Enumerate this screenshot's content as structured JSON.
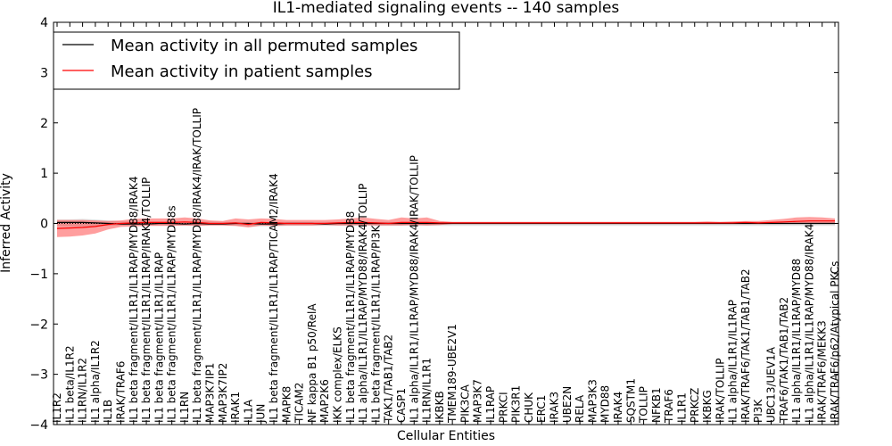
{
  "chart_data": {
    "type": "line",
    "title": "IL1-mediated signaling events -- 140 samples",
    "xlabel": "Cellular Entities",
    "ylabel": "Inferred Activity",
    "ylim": [
      -4,
      4
    ],
    "yticks": [
      -4,
      -3,
      -2,
      -1,
      0,
      1,
      2,
      3,
      4
    ],
    "ytick_labels": [
      "−4",
      "−3",
      "−2",
      "−1",
      "0",
      "1",
      "2",
      "3",
      "4"
    ],
    "legend_position": "top-left",
    "categories": [
      "IL1R2",
      "IL1 beta/IL1R2",
      "IL1RN/IL1R2",
      "IL1 alpha/IL1R2",
      "IL1B",
      "IRAK/TRAF6",
      "IL1 beta fragment/IL1R1/IL1RAP/MYD88/IRAK4",
      "IL1 beta fragment/IL1R1/IL1RAP/IRAK4/TOLLIP",
      "IL1 beta fragment/IL1R1/IL1RAP",
      "IL1 beta fragment/IL1R1/IL1RAP/MYD88s",
      "IL1RN",
      "IL1 beta fragment/IL1R1/IL1RAP/MYD88/IRAK4/IRAK/TOLLIP",
      "MAP3K7IP1",
      "MAP3K7IP2",
      "IRAK1",
      "IL1A",
      "JUN",
      "IL1 beta fragment/IL1R1/IL1RAP/TICAM2/IRAK4",
      "MAPK8",
      "TICAM2",
      "NF kappa B1 p50/RelA",
      "MAP2K6",
      "IKK complex/ELKS",
      "IL1 beta fragment/IL1R1/IL1RAP/MYD88",
      "IL1 alpha/IL1R1/IL1RAP/MYD88/IRAK4/TOLLIP",
      "IL1 beta fragment/IL1R1/IL1RAP/PI3K",
      "TAK1/TAB1/TAB2",
      "CASP1",
      "IL1 alpha/IL1R1/IL1RAP/MYD88/IRAK4/IRAK/TOLLIP",
      "IL1RN/IL1R1",
      "IKBKB",
      "TMEM189-UBE2V1",
      "PIK3CA",
      "MAP3K7",
      "IL1RAP",
      "PRKCI",
      "PIK3R1",
      "CHUK",
      "ERC1",
      "IRAK3",
      "UBE2N",
      "RELA",
      "MAP3K3",
      "MYD88",
      "IRAK4",
      "SQSTM1",
      "TOLLIP",
      "NFKB1",
      "TRAF6",
      "IL1R1",
      "PRKCZ",
      "IKBKG",
      "IRAK/TOLLIP",
      "IL1 alpha/IL1R1/IL1RAP",
      "IRAK/TRAF6/TAK1/TAB1/TAB2",
      "PI3K",
      "UBC13/UEV1A",
      "TRAF6/TAK1/TAB1/TAB2",
      "IL1 alpha/IL1R1/IL1RAP/MYD88",
      "IL1 alpha/IL1R1/IL1RAP/MYD88/IRAK4",
      "IRAK/TRAF6/MEKK3",
      "IRAK/TRAF6/p62/Atypical PKCs"
    ],
    "series": [
      {
        "name": "Mean activity in all permuted samples",
        "color": "#000000",
        "values": [
          0.02,
          0.02,
          0.02,
          0.01,
          0.0,
          -0.01,
          -0.01,
          -0.01,
          0.0,
          0.0,
          -0.01,
          0.0,
          -0.01,
          -0.01,
          0.0,
          0.0,
          -0.01,
          -0.01,
          0.0,
          0.0,
          0.0,
          -0.01,
          0.0,
          0.0,
          0.0,
          0.0,
          0.0,
          0.0,
          0.0,
          0.0,
          0.0,
          0.0,
          0.0,
          0.0,
          0.0,
          0.0,
          0.0,
          0.0,
          0.0,
          0.0,
          0.0,
          0.0,
          0.0,
          0.0,
          0.0,
          0.0,
          0.0,
          0.0,
          0.0,
          0.0,
          0.0,
          0.0,
          0.0,
          0.0,
          0.0,
          0.0,
          0.0,
          0.0,
          0.0,
          0.0,
          0.0,
          0.0
        ],
        "band_low": [
          -0.05,
          -0.06,
          -0.06,
          -0.05,
          -0.05,
          -0.04,
          -0.04,
          -0.04,
          -0.04,
          -0.04,
          -0.05,
          -0.05,
          -0.04,
          -0.04,
          -0.05,
          -0.06,
          -0.06,
          -0.06,
          -0.05,
          -0.05,
          -0.05,
          -0.05,
          -0.05,
          -0.05,
          -0.05,
          -0.05,
          -0.05,
          -0.05,
          -0.05,
          -0.05,
          -0.05,
          -0.05,
          -0.05,
          -0.05,
          -0.05,
          -0.05,
          -0.05,
          -0.05,
          -0.05,
          -0.05,
          -0.05,
          -0.05,
          -0.05,
          -0.05,
          -0.05,
          -0.05,
          -0.05,
          -0.05,
          -0.05,
          -0.05,
          -0.05,
          -0.05,
          -0.05,
          -0.05,
          -0.05,
          -0.05,
          -0.05,
          -0.05,
          -0.05,
          -0.05,
          -0.05,
          -0.05
        ],
        "band_high": [
          0.08,
          0.08,
          0.09,
          0.08,
          0.06,
          0.04,
          0.04,
          0.04,
          0.04,
          0.04,
          0.03,
          0.04,
          0.04,
          0.03,
          0.03,
          0.03,
          0.03,
          0.03,
          0.03,
          0.03,
          0.03,
          0.03,
          0.03,
          0.03,
          0.03,
          0.03,
          0.03,
          0.03,
          0.03,
          0.03,
          0.03,
          0.03,
          0.03,
          0.03,
          0.03,
          0.03,
          0.03,
          0.03,
          0.03,
          0.03,
          0.03,
          0.03,
          0.03,
          0.03,
          0.03,
          0.03,
          0.03,
          0.03,
          0.03,
          0.03,
          0.03,
          0.03,
          0.03,
          0.03,
          0.03,
          0.03,
          0.03,
          0.03,
          0.03,
          0.03,
          0.03,
          0.03
        ]
      },
      {
        "name": "Mean activity in patient samples",
        "color": "#ff0000",
        "values": [
          -0.1,
          -0.09,
          -0.08,
          -0.06,
          -0.02,
          0.0,
          0.01,
          0.02,
          0.02,
          0.02,
          0.03,
          0.02,
          0.0,
          0.0,
          0.01,
          -0.02,
          0.02,
          0.01,
          0.0,
          0.0,
          0.0,
          0.0,
          0.01,
          0.02,
          0.02,
          0.01,
          0.0,
          0.02,
          0.02,
          0.02,
          0.01,
          0.01,
          0.01,
          0.01,
          0.01,
          0.01,
          0.01,
          0.01,
          0.01,
          0.01,
          0.01,
          0.01,
          0.01,
          0.01,
          0.01,
          0.01,
          0.01,
          0.01,
          0.01,
          0.01,
          0.01,
          0.01,
          0.01,
          0.01,
          0.02,
          0.01,
          0.02,
          0.03,
          0.04,
          0.05,
          0.05,
          0.05
        ],
        "band_low": [
          -0.27,
          -0.26,
          -0.24,
          -0.2,
          -0.12,
          -0.07,
          -0.06,
          -0.05,
          -0.05,
          -0.05,
          -0.04,
          -0.05,
          -0.04,
          -0.04,
          -0.05,
          -0.08,
          -0.04,
          -0.05,
          -0.04,
          -0.04,
          -0.04,
          -0.03,
          -0.04,
          -0.04,
          -0.03,
          -0.04,
          -0.04,
          -0.04,
          -0.03,
          -0.04,
          -0.03,
          -0.01,
          -0.01,
          -0.01,
          -0.01,
          -0.01,
          -0.01,
          -0.01,
          -0.01,
          -0.01,
          -0.01,
          -0.01,
          -0.01,
          -0.01,
          -0.01,
          -0.01,
          -0.01,
          -0.01,
          -0.01,
          -0.01,
          -0.01,
          -0.01,
          -0.01,
          -0.01,
          -0.01,
          -0.01,
          -0.01,
          -0.01,
          -0.01,
          -0.01,
          -0.01,
          -0.01
        ],
        "band_high": [
          0.07,
          0.07,
          0.07,
          0.06,
          0.05,
          0.06,
          0.09,
          0.1,
          0.1,
          0.1,
          0.12,
          0.1,
          0.06,
          0.05,
          0.1,
          0.08,
          0.1,
          0.09,
          0.07,
          0.07,
          0.07,
          0.07,
          0.08,
          0.1,
          0.12,
          0.09,
          0.07,
          0.12,
          0.1,
          0.12,
          0.05,
          0.03,
          0.03,
          0.03,
          0.03,
          0.03,
          0.03,
          0.03,
          0.03,
          0.03,
          0.03,
          0.03,
          0.03,
          0.03,
          0.03,
          0.03,
          0.03,
          0.03,
          0.03,
          0.03,
          0.03,
          0.04,
          0.03,
          0.04,
          0.05,
          0.05,
          0.07,
          0.09,
          0.12,
          0.13,
          0.12,
          0.1
        ]
      }
    ]
  }
}
